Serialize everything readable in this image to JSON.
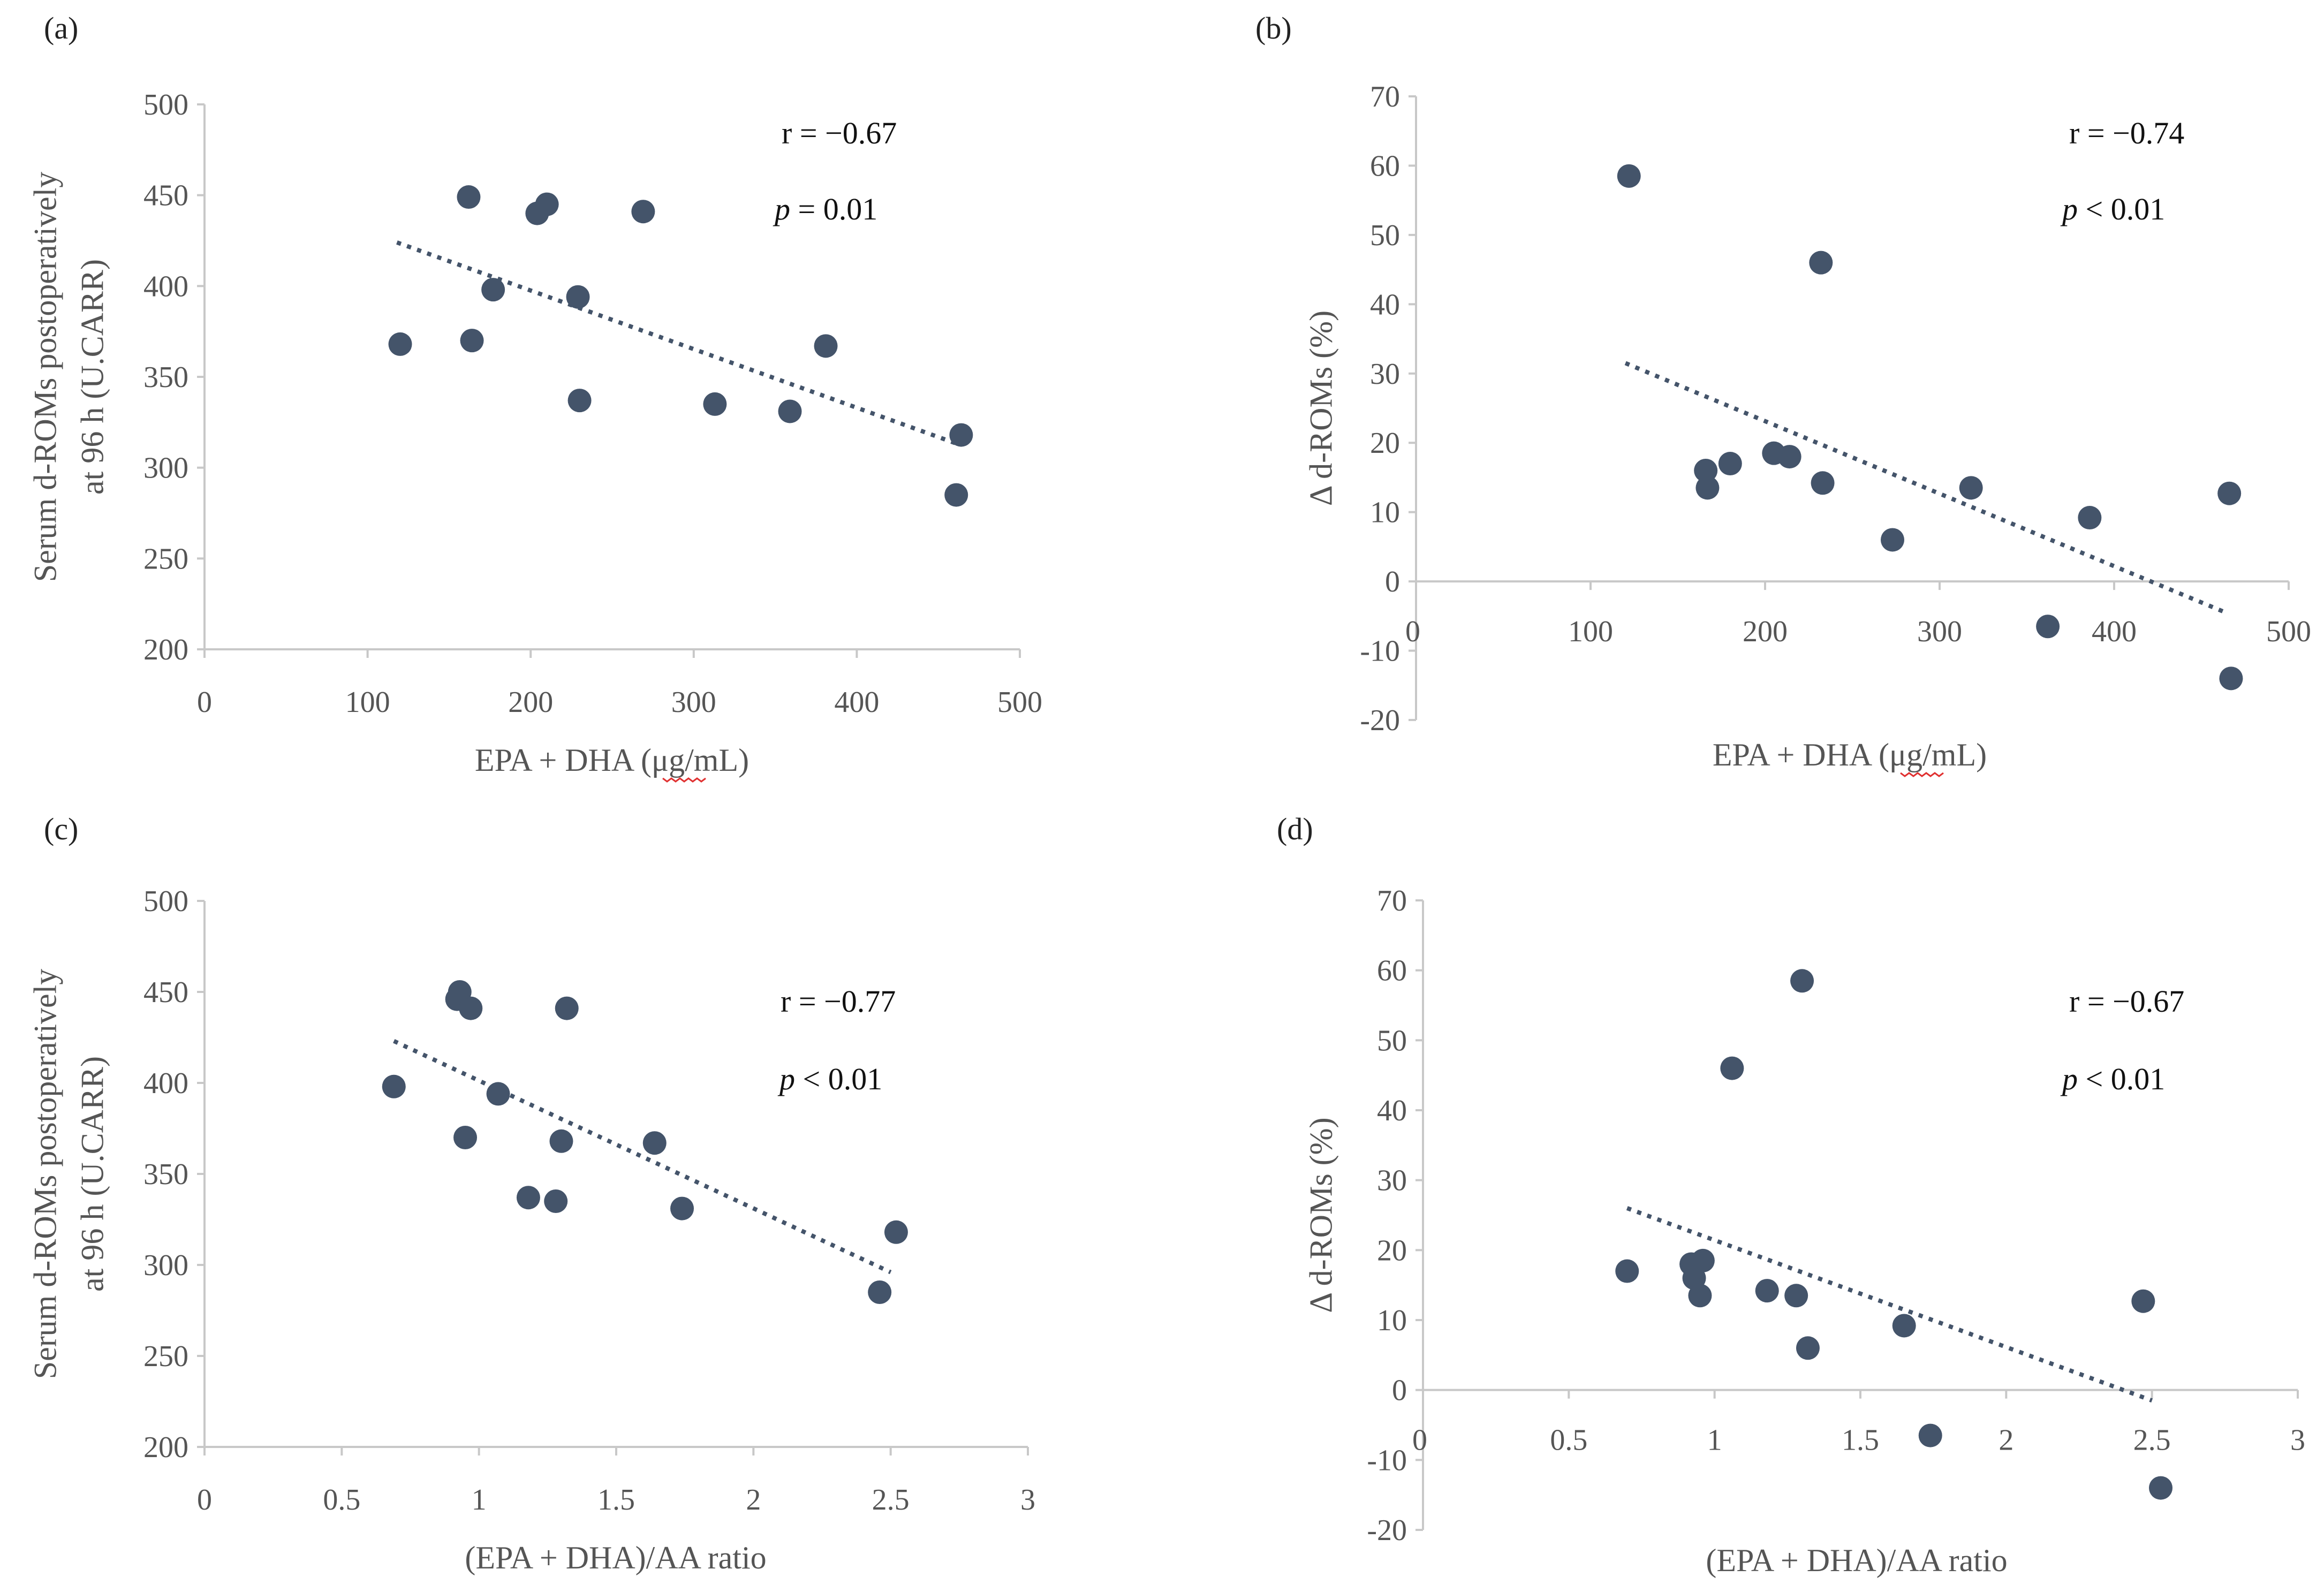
{
  "chart_data": [
    {
      "id": "a",
      "type": "scatter",
      "panel_label": "(a)",
      "xlabel": "EPA + DHA (μg/mL)",
      "ylabel_lines": [
        "Serum d-ROMs postoperatively",
        "at 96 h (U.CARR)"
      ],
      "xlim": [
        0,
        500
      ],
      "ylim": [
        200,
        500
      ],
      "x_ticks": [
        0,
        100,
        200,
        300,
        400,
        500
      ],
      "y_ticks": [
        200,
        250,
        300,
        350,
        400,
        450,
        500
      ],
      "x_tick_labels": [
        "0",
        "100",
        "200",
        "300",
        "400",
        "500"
      ],
      "y_tick_labels": [
        "200",
        "250",
        "300",
        "350",
        "400",
        "450",
        "500"
      ],
      "points": [
        [
          120,
          368
        ],
        [
          162,
          449
        ],
        [
          164,
          370
        ],
        [
          177,
          398
        ],
        [
          204,
          440
        ],
        [
          210,
          445
        ],
        [
          229,
          394
        ],
        [
          230,
          337
        ],
        [
          269,
          441
        ],
        [
          313,
          335
        ],
        [
          359,
          331
        ],
        [
          381,
          367
        ],
        [
          461,
          285
        ],
        [
          464,
          318
        ]
      ],
      "trendline": [
        [
          118,
          424
        ],
        [
          462,
          313
        ]
      ],
      "r_text": "r = −0.67",
      "p_symbol": "p",
      "p_value": " = 0.01"
    },
    {
      "id": "b",
      "type": "scatter",
      "panel_label": "(b)",
      "xlabel": "EPA + DHA (μg/mL)",
      "ylabel_lines": [
        "Δ d-ROMs (%)"
      ],
      "xlim": [
        0,
        500
      ],
      "ylim": [
        -20,
        70
      ],
      "x_ticks": [
        0,
        100,
        200,
        300,
        400,
        500
      ],
      "y_ticks": [
        -20,
        -10,
        0,
        10,
        20,
        30,
        40,
        50,
        60,
        70
      ],
      "x_tick_labels": [
        "0",
        "100",
        "200",
        "300",
        "400",
        "500"
      ],
      "y_tick_labels": [
        "-20",
        "-10",
        "0",
        "10",
        "20",
        "30",
        "40",
        "50",
        "60",
        "70"
      ],
      "points": [
        [
          122,
          58.5
        ],
        [
          166,
          16
        ],
        [
          167,
          13.5
        ],
        [
          180,
          17
        ],
        [
          205,
          18.5
        ],
        [
          214,
          18
        ],
        [
          232,
          46
        ],
        [
          233,
          14.2
        ],
        [
          273,
          6
        ],
        [
          318,
          13.5
        ],
        [
          362,
          -6.5
        ],
        [
          386,
          9.2
        ],
        [
          466,
          12.7
        ],
        [
          467,
          -14
        ]
      ],
      "trendline": [
        [
          120,
          31.5
        ],
        [
          464,
          -4.5
        ]
      ],
      "r_text": "r = −0.74",
      "p_symbol": "p",
      "p_value": " < 0.01"
    },
    {
      "id": "c",
      "type": "scatter",
      "panel_label": "(c)",
      "xlabel": "(EPA + DHA)/AA ratio",
      "ylabel_lines": [
        "Serum d-ROMs postoperatively",
        "at 96 h (U.CARR)"
      ],
      "xlim": [
        0,
        3
      ],
      "ylim": [
        200,
        500
      ],
      "x_ticks": [
        0,
        0.5,
        1,
        1.5,
        2,
        2.5,
        3
      ],
      "y_ticks": [
        200,
        250,
        300,
        350,
        400,
        450,
        500
      ],
      "x_tick_labels": [
        "0",
        "0.5",
        "1",
        "1.5",
        "2",
        "2.5",
        "3"
      ],
      "y_tick_labels": [
        "200",
        "250",
        "300",
        "350",
        "400",
        "450",
        "500"
      ],
      "points": [
        [
          0.69,
          398
        ],
        [
          0.92,
          446
        ],
        [
          0.93,
          450
        ],
        [
          0.95,
          370
        ],
        [
          0.97,
          441
        ],
        [
          1.07,
          394
        ],
        [
          1.18,
          337
        ],
        [
          1.28,
          335
        ],
        [
          1.3,
          368
        ],
        [
          1.32,
          441
        ],
        [
          1.64,
          367
        ],
        [
          1.74,
          331
        ],
        [
          2.46,
          285
        ],
        [
          2.52,
          318
        ]
      ],
      "trendline": [
        [
          0.69,
          423
        ],
        [
          2.5,
          296
        ]
      ],
      "r_text": "r = −0.77",
      "p_symbol": "p",
      "p_value": " < 0.01"
    },
    {
      "id": "d",
      "type": "scatter",
      "panel_label": "(d)",
      "xlabel": "(EPA + DHA)/AA ratio",
      "ylabel_lines": [
        "Δ d-ROMs (%)"
      ],
      "xlim": [
        0,
        3
      ],
      "ylim": [
        -20,
        70
      ],
      "x_ticks": [
        0,
        0.5,
        1,
        1.5,
        2,
        2.5,
        3
      ],
      "y_ticks": [
        -20,
        -10,
        0,
        10,
        20,
        30,
        40,
        50,
        60,
        70
      ],
      "x_tick_labels": [
        "0",
        "0.5",
        "1",
        "1.5",
        "2",
        "2.5",
        "3"
      ],
      "y_tick_labels": [
        "-20",
        "-10",
        "0",
        "10",
        "20",
        "30",
        "40",
        "50",
        "60",
        "70"
      ],
      "points": [
        [
          0.7,
          17
        ],
        [
          0.92,
          18
        ],
        [
          0.93,
          16
        ],
        [
          0.95,
          13.5
        ],
        [
          0.96,
          18.5
        ],
        [
          1.06,
          46
        ],
        [
          1.18,
          14.2
        ],
        [
          1.28,
          13.5
        ],
        [
          1.3,
          58.5
        ],
        [
          1.32,
          6
        ],
        [
          1.65,
          9.2
        ],
        [
          1.74,
          -6.5
        ],
        [
          2.47,
          12.7
        ],
        [
          2.53,
          -14
        ]
      ],
      "trendline": [
        [
          0.7,
          26
        ],
        [
          2.5,
          -1.5
        ]
      ],
      "r_text": "r = −0.67",
      "p_symbol": "p",
      "p_value": " < 0.01"
    }
  ],
  "colors": {
    "point": "#44546a",
    "trendline": "#44546a",
    "axis": "#c8c8c8",
    "tick_text": "#555555"
  }
}
